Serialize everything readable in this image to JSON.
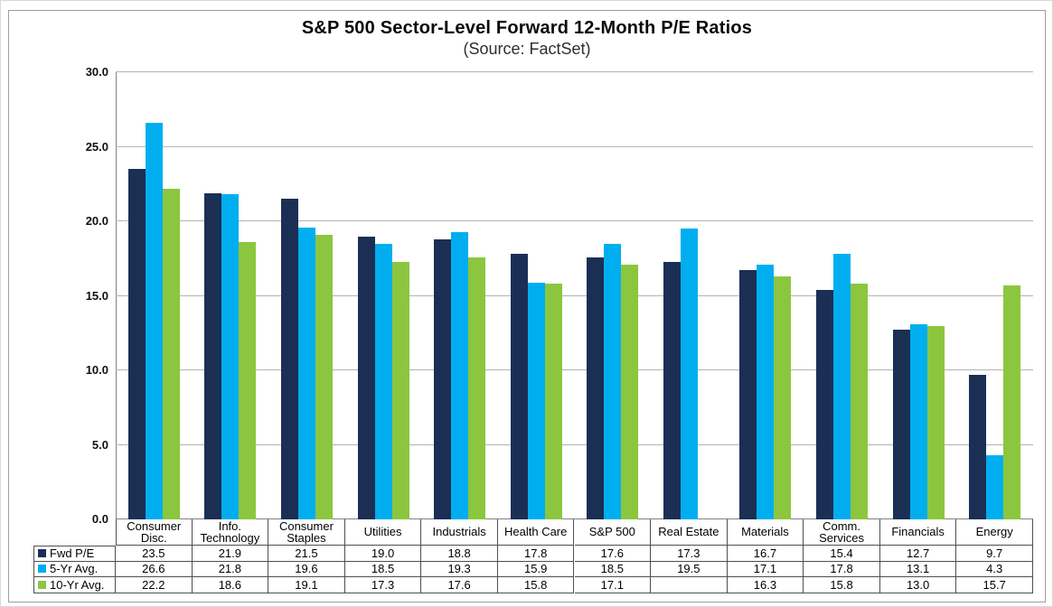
{
  "figure": {
    "title": "S&P 500 Sector-Level Forward 12-Month P/E Ratios",
    "subtitle": "(Source: FactSet)"
  },
  "chart_data": {
    "type": "bar",
    "title": "S&P 500 Sector-Level Forward 12-Month P/E Ratios",
    "subtitle": "(Source: FactSet)",
    "categories": [
      "Consumer Disc.",
      "Info. Technology",
      "Consumer Staples",
      "Utilities",
      "Industrials",
      "Health Care",
      "S&P 500",
      "Real Estate",
      "Materials",
      "Comm. Services",
      "Financials",
      "Energy"
    ],
    "series": [
      {
        "name": "Fwd P/E",
        "color": "#1B2F55",
        "values": [
          23.5,
          21.9,
          21.5,
          19.0,
          18.8,
          17.8,
          17.6,
          17.3,
          16.7,
          15.4,
          12.7,
          9.7
        ]
      },
      {
        "name": "5-Yr Avg.",
        "color": "#00AEEF",
        "values": [
          26.6,
          21.8,
          19.6,
          18.5,
          19.3,
          15.9,
          18.5,
          19.5,
          17.1,
          17.8,
          13.1,
          4.3
        ]
      },
      {
        "name": "10-Yr Avg.",
        "color": "#8CC63E",
        "values": [
          22.2,
          18.6,
          19.1,
          17.3,
          17.6,
          15.8,
          17.1,
          null,
          16.3,
          15.8,
          13.0,
          15.7
        ]
      }
    ],
    "ylim": [
      0,
      30
    ],
    "ytick_step": 5,
    "ytick_labels": [
      "0.0",
      "5.0",
      "10.0",
      "15.0",
      "20.0",
      "25.0",
      "30.0"
    ],
    "grid": true,
    "legend_position": "data-table-left",
    "value_format": "one-decimal",
    "notes": "Real Estate has no 10-Yr Avg. value (blank cell, missing bar)"
  },
  "style": {
    "grid_color": "#b4b4b4",
    "axis_color": "#808080",
    "table_border_color": "#4f4f4f",
    "background": "#ffffff"
  }
}
